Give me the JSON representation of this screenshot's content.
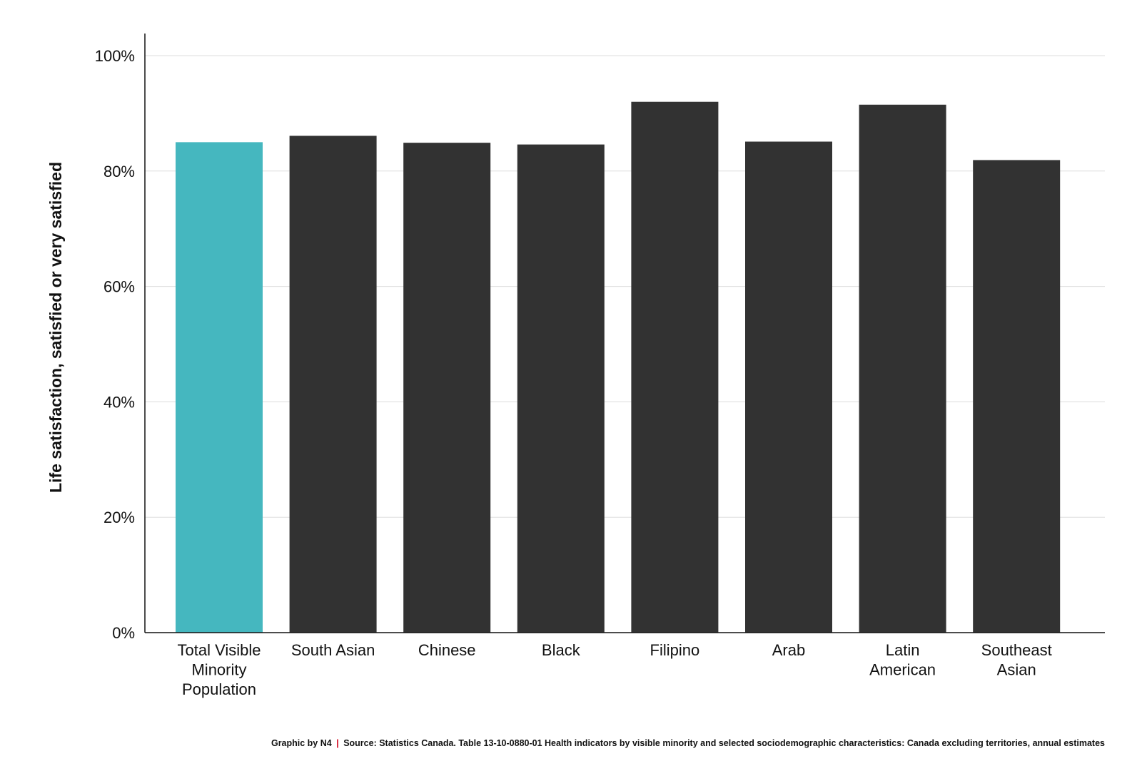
{
  "chart_data": {
    "type": "bar",
    "categories": [
      "Total Visible Minority Population",
      "South Asian",
      "Chinese",
      "Black",
      "Filipino",
      "Arab",
      "Latin American",
      "Southeast Asian"
    ],
    "category_lines": [
      [
        "Total Visible",
        "Minority",
        "Population"
      ],
      [
        "South Asian"
      ],
      [
        "Chinese"
      ],
      [
        "Black"
      ],
      [
        "Filipino"
      ],
      [
        "Arab"
      ],
      [
        "Latin",
        "American"
      ],
      [
        "Southeast",
        "Asian"
      ]
    ],
    "values": [
      85,
      86.1,
      84.9,
      84.6,
      92,
      85.1,
      91.5,
      81.9
    ],
    "ylabel": "Life satisfaction, satisfied or very satisfied",
    "xlabel": "",
    "ylim": [
      0,
      100
    ],
    "yticks": [
      0,
      20,
      40,
      60,
      80,
      100
    ],
    "ytick_labels": [
      "0%",
      "20%",
      "40%",
      "60%",
      "80%",
      "100%"
    ],
    "grid": true,
    "colors": {
      "highlight": "#45b7bf",
      "default": "#323232",
      "grid": "#dddddd",
      "axis": "#111111"
    },
    "highlight_index": 0
  },
  "footer": {
    "credit": "Graphic by N4",
    "separator": "|",
    "source": "Source: Statistics Canada. Table 13-10-0880-01  Health indicators by visible minority and selected sociodemographic characteristics: Canada excluding territories, annual estimates"
  }
}
